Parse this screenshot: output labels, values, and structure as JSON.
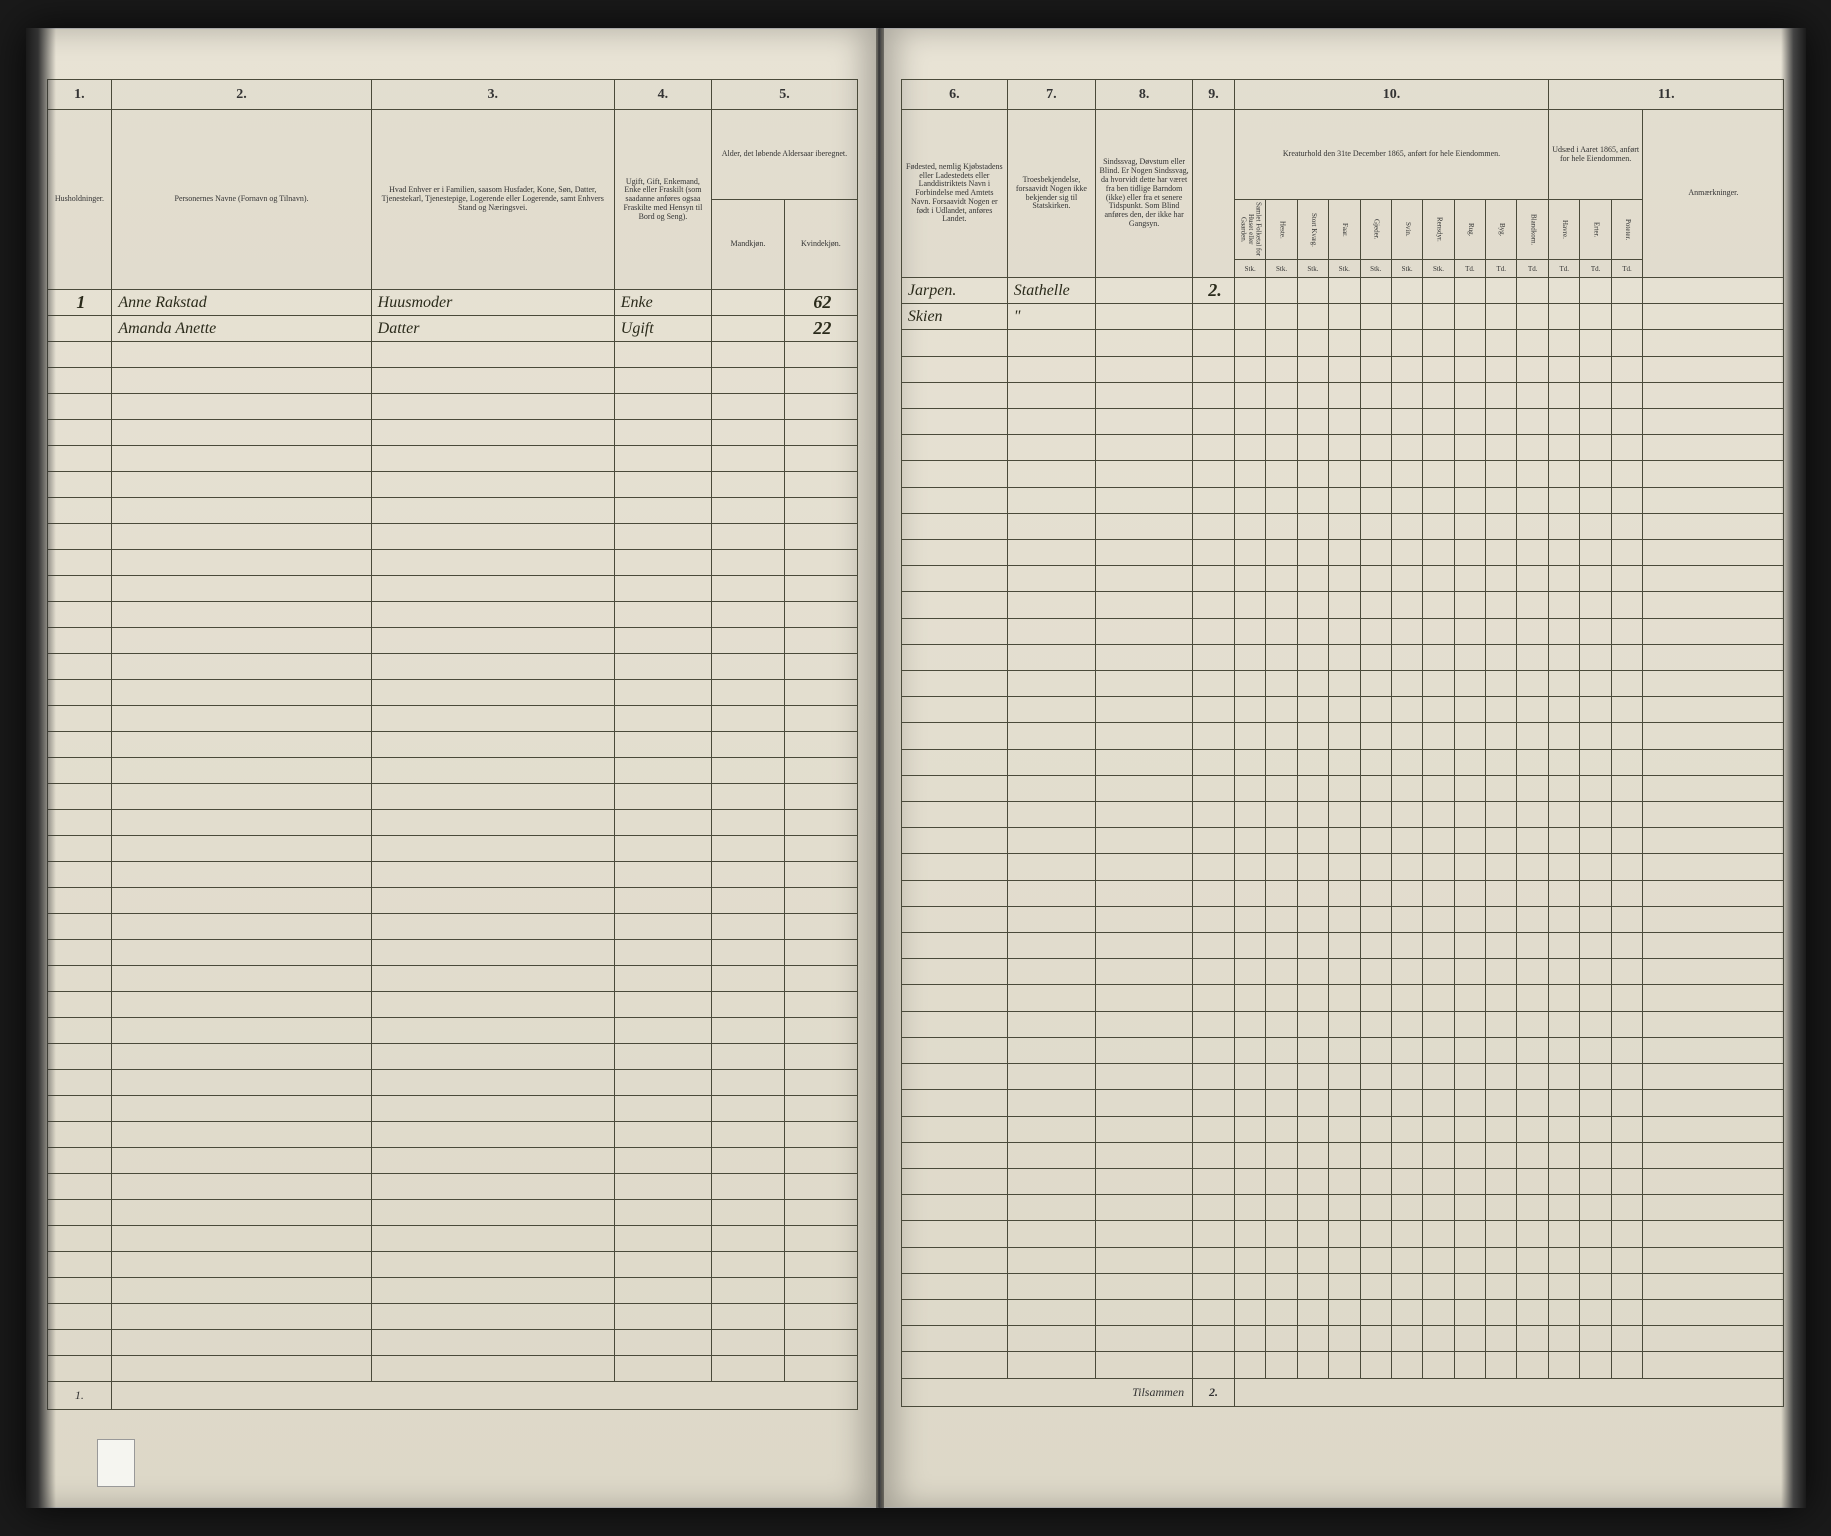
{
  "left_page": {
    "col_numbers": [
      "1.",
      "2.",
      "3.",
      "4.",
      "5."
    ],
    "headers": {
      "col1": "Husholdninger.",
      "col2": "Personernes Navne (Fornavn og Tilnavn).",
      "col3": "Hvad Enhver er i Familien, saasom Husfader, Kone, Søn, Datter, Tjenestekarl, Tjenestepige, Logerende eller Logerende, samt Enhvers Stand og Næringsvei.",
      "col4": "Ugift, Gift, Enkemand, Enke eller Fraskilt (som saadanne anføres ogsaa Fraskilte med Hensyn til Bord og Seng).",
      "col4_sub1": "Mandkjøn.",
      "col4_sub2": "Kvindekjøn.",
      "col5": "Alder, det løbende Aldersaar iberegnet."
    },
    "rows": [
      {
        "c1": "1",
        "c2": "Anne Rakstad",
        "c3": "Huusmoder",
        "c4": "Enke",
        "c5a": "",
        "c5b": "62"
      },
      {
        "c1": "",
        "c2": "Amanda Anette",
        "c3": "Datter",
        "c4": "Ugift",
        "c5a": "",
        "c5b": "22"
      }
    ],
    "footer": {
      "c1": "1."
    }
  },
  "right_page": {
    "col_numbers": [
      "6.",
      "7.",
      "8.",
      "9.",
      "10.",
      "11."
    ],
    "headers": {
      "col6": "Fødested, nemlig Kjøbstadens eller Ladestedets eller Landdistriktets Navn i Forbindelse med Amtets Navn. Forsaavidt Nogen er født i Udlandet, anføres Landet.",
      "col7": "Troesbekjendelse, forsaavidt Nogen ikke bekjender sig til Statskirken.",
      "col8": "Sindssvag, Døvstum eller Blind. Er Nogen Sindssvag, da hvorvidt dette har været fra ben tidlige Barndom (ikke) eller fra et senere Tidspunkt. Som Blind anføres den, der ikke har Gangsyn.",
      "col9": "",
      "col10": "Kreaturhold den 31te December 1865, anført for hele Eiendommen.",
      "col10_subs": [
        "Samlet Folketal for Huset eller Gaarden.",
        "Heste.",
        "Stort Kvæg.",
        "Faar.",
        "Gjeder.",
        "Svin.",
        "Rensdyr.",
        "Rug.",
        "Byg.",
        "Blandkorn."
      ],
      "col10_units": [
        "Stk.",
        "Stk.",
        "Stk.",
        "Stk.",
        "Stk.",
        "Stk.",
        "Stk.",
        "Td.",
        "Td.",
        "Td."
      ],
      "col11": "Udsæd i Aaret 1865, anført for hele Eiendommen.",
      "col11_subs": [
        "Havre.",
        "Erter.",
        "Poteter."
      ],
      "col11_units": [
        "Td.",
        "Td.",
        "Td."
      ],
      "col_last": "Anmærkninger."
    },
    "rows": [
      {
        "c6": "Jarpen.",
        "c7": "Stathelle",
        "c8": "",
        "c9": "2.",
        "rest": [
          "",
          "",
          "",
          "",
          "",
          "",
          "",
          "",
          "",
          "",
          "",
          "",
          ""
        ]
      },
      {
        "c6": "Skien",
        "c7": "\"",
        "c8": "",
        "c9": "",
        "rest": [
          "",
          "",
          "",
          "",
          "",
          "",
          "",
          "",
          "",
          "",
          "",
          "",
          ""
        ]
      }
    ],
    "footer": {
      "label": "Tilsammen",
      "value": "2."
    }
  },
  "empty_rows": 40,
  "colors": {
    "paper": "#e8e3d5",
    "rule": "#4a4a3a",
    "ink": "#2a2a1a"
  }
}
